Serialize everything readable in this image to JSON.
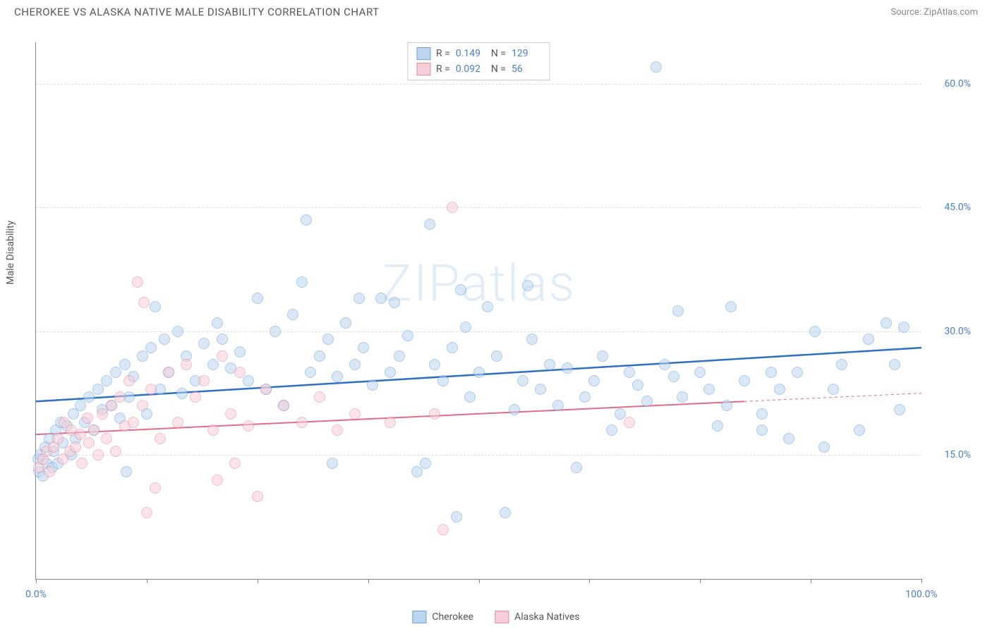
{
  "title": "CHEROKEE VS ALASKA NATIVE MALE DISABILITY CORRELATION CHART",
  "source_label": "Source: ZipAtlas.com",
  "ylabel": "Male Disability",
  "watermark": "ZIPatlas",
  "chart": {
    "type": "scatter",
    "xlim": [
      0,
      100
    ],
    "ylim": [
      0,
      65
    ],
    "xticks": [
      0,
      12.5,
      25,
      37.5,
      50,
      62.5,
      75,
      87.5,
      100
    ],
    "xtick_labels": {
      "0": "0.0%",
      "100": "100.0%"
    },
    "yticks": [
      15,
      30,
      45,
      60
    ],
    "ytick_labels": [
      "15.0%",
      "30.0%",
      "45.0%",
      "60.0%"
    ],
    "grid_color": "#dddddd",
    "axis_color": "#888888",
    "background_color": "#ffffff",
    "point_radius": 8,
    "point_opacity": 0.55,
    "series": [
      {
        "name": "Cherokee",
        "color_fill": "#bcd6f0",
        "color_stroke": "#6a9fd8",
        "r": "0.149",
        "n": "129",
        "trend": {
          "x1": 0,
          "y1": 21.5,
          "x2": 100,
          "y2": 28,
          "color": "#2f6fc4",
          "width": 2.5,
          "dash_extent": null
        },
        "points": [
          [
            0.2,
            14.5
          ],
          [
            0.3,
            13
          ],
          [
            0.5,
            15
          ],
          [
            0.8,
            12.5
          ],
          [
            1,
            16
          ],
          [
            1.2,
            14
          ],
          [
            1.5,
            17
          ],
          [
            1.8,
            13.5
          ],
          [
            2,
            15.5
          ],
          [
            2.2,
            18
          ],
          [
            2.5,
            14
          ],
          [
            2.8,
            19
          ],
          [
            3,
            16.5
          ],
          [
            3.5,
            18.5
          ],
          [
            4,
            15
          ],
          [
            4.2,
            20
          ],
          [
            4.5,
            17
          ],
          [
            5,
            21
          ],
          [
            5.5,
            19
          ],
          [
            6,
            22
          ],
          [
            6.5,
            18
          ],
          [
            7,
            23
          ],
          [
            7.5,
            20.5
          ],
          [
            8,
            24
          ],
          [
            8.5,
            21
          ],
          [
            9,
            25
          ],
          [
            9.5,
            19.5
          ],
          [
            10,
            26
          ],
          [
            10.5,
            22
          ],
          [
            11,
            24.5
          ],
          [
            12,
            27
          ],
          [
            12.5,
            20
          ],
          [
            13,
            28
          ],
          [
            14,
            23
          ],
          [
            14.5,
            29
          ],
          [
            15,
            25
          ],
          [
            16,
            30
          ],
          [
            16.5,
            22.5
          ],
          [
            17,
            27
          ],
          [
            18,
            24
          ],
          [
            19,
            28.5
          ],
          [
            20,
            26
          ],
          [
            21,
            29
          ],
          [
            22,
            25.5
          ],
          [
            23,
            27.5
          ],
          [
            24,
            24
          ],
          [
            25,
            34
          ],
          [
            26,
            23
          ],
          [
            27,
            30
          ],
          [
            28,
            21
          ],
          [
            29,
            32
          ],
          [
            30,
            36
          ],
          [
            30.5,
            43.5
          ],
          [
            31,
            25
          ],
          [
            32,
            27
          ],
          [
            33,
            29
          ],
          [
            34,
            24.5
          ],
          [
            35,
            31
          ],
          [
            36,
            26
          ],
          [
            37,
            28
          ],
          [
            38,
            23.5
          ],
          [
            39,
            34
          ],
          [
            40,
            25
          ],
          [
            41,
            27
          ],
          [
            42,
            29.5
          ],
          [
            43,
            13
          ],
          [
            44,
            14
          ],
          [
            44.5,
            43
          ],
          [
            45,
            26
          ],
          [
            46,
            24
          ],
          [
            47,
            28
          ],
          [
            48,
            35
          ],
          [
            49,
            22
          ],
          [
            50,
            25
          ],
          [
            51,
            33
          ],
          [
            52,
            27
          ],
          [
            53,
            8
          ],
          [
            54,
            20.5
          ],
          [
            55,
            24
          ],
          [
            56,
            29
          ],
          [
            57,
            23
          ],
          [
            58,
            26
          ],
          [
            59,
            21
          ],
          [
            60,
            25.5
          ],
          [
            61,
            13.5
          ],
          [
            62,
            22
          ],
          [
            63,
            24
          ],
          [
            64,
            27
          ],
          [
            65,
            18
          ],
          [
            66,
            20
          ],
          [
            67,
            25
          ],
          [
            68,
            23.5
          ],
          [
            69,
            21.5
          ],
          [
            70,
            62
          ],
          [
            71,
            26
          ],
          [
            72,
            24.5
          ],
          [
            73,
            22
          ],
          [
            72.5,
            32.5
          ],
          [
            75,
            25
          ],
          [
            76,
            23
          ],
          [
            78,
            21
          ],
          [
            78.5,
            33
          ],
          [
            80,
            24
          ],
          [
            82,
            20
          ],
          [
            84,
            23
          ],
          [
            85,
            17
          ],
          [
            86,
            25
          ],
          [
            88,
            30
          ],
          [
            89,
            16
          ],
          [
            90,
            23
          ],
          [
            91,
            26
          ],
          [
            93,
            18
          ],
          [
            94,
            29
          ],
          [
            96,
            31
          ],
          [
            97,
            26
          ],
          [
            97.5,
            20.5
          ],
          [
            98,
            30.5
          ],
          [
            82,
            18
          ],
          [
            83,
            25
          ],
          [
            77,
            18.5
          ],
          [
            13.5,
            33
          ],
          [
            20.5,
            31
          ],
          [
            36.5,
            34
          ],
          [
            40.5,
            33.5
          ],
          [
            48.5,
            30.5
          ],
          [
            55.5,
            35.5
          ],
          [
            10.2,
            13
          ],
          [
            33.5,
            14
          ],
          [
            47.5,
            7.5
          ]
        ]
      },
      {
        "name": "Alaska Natives",
        "color_fill": "#f6cdd8",
        "color_stroke": "#e08ca3",
        "r": "0.092",
        "n": "56",
        "trend": {
          "x1": 0,
          "y1": 17.5,
          "x2": 100,
          "y2": 22.5,
          "color": "#e56a8a",
          "width": 2,
          "dash_from_x": 80
        },
        "points": [
          [
            0.3,
            13.5
          ],
          [
            0.8,
            14.5
          ],
          [
            1.2,
            15.5
          ],
          [
            1.5,
            13
          ],
          [
            2,
            16
          ],
          [
            2.5,
            17
          ],
          [
            3,
            14.5
          ],
          [
            3.2,
            19
          ],
          [
            3.8,
            15.5
          ],
          [
            4,
            18
          ],
          [
            4.5,
            16
          ],
          [
            5,
            17.5
          ],
          [
            5.2,
            14
          ],
          [
            5.8,
            19.5
          ],
          [
            6,
            16.5
          ],
          [
            6.5,
            18
          ],
          [
            7,
            15
          ],
          [
            7.5,
            20
          ],
          [
            8,
            17
          ],
          [
            8.5,
            21
          ],
          [
            9,
            15.5
          ],
          [
            9.5,
            22
          ],
          [
            10,
            18.5
          ],
          [
            10.5,
            24
          ],
          [
            11,
            19
          ],
          [
            12,
            21
          ],
          [
            12.5,
            8
          ],
          [
            13,
            23
          ],
          [
            14,
            17
          ],
          [
            15,
            25
          ],
          [
            16,
            19
          ],
          [
            17,
            26
          ],
          [
            11.5,
            36
          ],
          [
            12.2,
            33.5
          ],
          [
            13.5,
            11
          ],
          [
            18,
            22
          ],
          [
            19,
            24
          ],
          [
            20,
            18
          ],
          [
            21,
            27
          ],
          [
            22,
            20
          ],
          [
            23,
            25
          ],
          [
            24,
            18.5
          ],
          [
            25,
            10
          ],
          [
            26,
            23
          ],
          [
            28,
            21
          ],
          [
            30,
            19
          ],
          [
            32,
            22
          ],
          [
            34,
            18
          ],
          [
            36,
            20
          ],
          [
            40,
            19
          ],
          [
            20.5,
            12
          ],
          [
            22.5,
            14
          ],
          [
            45,
            20
          ],
          [
            47,
            45
          ],
          [
            46,
            6
          ],
          [
            67,
            19
          ]
        ]
      }
    ]
  },
  "legend_stats": [
    {
      "swatch_fill": "#bcd6f0",
      "swatch_stroke": "#6a9fd8",
      "r_label": "R =",
      "r": "0.149",
      "n_label": "N =",
      "n": "129"
    },
    {
      "swatch_fill": "#f6cdd8",
      "swatch_stroke": "#e08ca3",
      "r_label": "R =",
      "r": "0.092",
      "n_label": "N =",
      "n": "56"
    }
  ],
  "bottom_legend": [
    {
      "swatch_fill": "#bcd6f0",
      "swatch_stroke": "#6a9fd8",
      "label": "Cherokee"
    },
    {
      "swatch_fill": "#f6cdd8",
      "swatch_stroke": "#e08ca3",
      "label": "Alaska Natives"
    }
  ]
}
